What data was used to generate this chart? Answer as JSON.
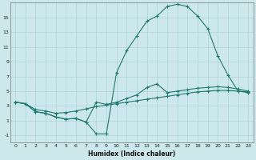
{
  "xlabel": "Humidex (Indice chaleur)",
  "bg_color": "#cce8ec",
  "line_color": "#1f7a6e",
  "grid_color": "#aad4d8",
  "xlim": [
    -0.5,
    23.5
  ],
  "ylim": [
    -2,
    17
  ],
  "xticks": [
    0,
    1,
    2,
    3,
    4,
    5,
    6,
    7,
    8,
    9,
    10,
    11,
    12,
    13,
    14,
    15,
    16,
    17,
    18,
    19,
    20,
    21,
    22,
    23
  ],
  "yticks": [
    -1,
    1,
    3,
    5,
    7,
    9,
    11,
    13,
    15
  ],
  "line1_x": [
    0,
    1,
    2,
    3,
    4,
    5,
    6,
    7,
    8,
    9,
    10,
    11,
    12,
    13,
    14,
    15,
    16,
    17,
    18,
    19,
    20,
    21,
    22,
    23
  ],
  "line1_y": [
    3.5,
    3.3,
    2.5,
    2.3,
    2.0,
    2.1,
    2.3,
    2.6,
    2.9,
    3.1,
    3.3,
    3.5,
    3.7,
    3.9,
    4.1,
    4.3,
    4.5,
    4.7,
    4.9,
    5.0,
    5.1,
    5.1,
    5.0,
    4.9
  ],
  "line2_x": [
    0,
    1,
    2,
    3,
    4,
    5,
    6,
    7,
    8,
    9,
    10,
    11,
    12,
    13,
    14,
    15,
    16,
    17,
    18,
    19,
    20,
    21,
    22,
    23
  ],
  "line2_y": [
    3.5,
    3.3,
    2.2,
    2.0,
    1.5,
    1.2,
    1.3,
    0.8,
    3.5,
    3.2,
    3.5,
    4.0,
    4.5,
    5.5,
    6.0,
    4.8,
    5.0,
    5.2,
    5.4,
    5.5,
    5.6,
    5.5,
    5.3,
    5.0
  ],
  "line3_x": [
    0,
    1,
    2,
    3,
    4,
    5,
    6,
    7,
    8,
    9,
    10,
    11,
    12,
    13,
    14,
    15,
    16,
    17,
    18,
    19,
    20,
    21,
    22,
    23
  ],
  "line3_y": [
    3.5,
    3.3,
    2.2,
    2.0,
    1.5,
    1.2,
    1.3,
    0.8,
    -0.8,
    -0.8,
    7.5,
    10.5,
    12.5,
    14.5,
    15.2,
    16.5,
    16.8,
    16.5,
    15.2,
    13.5,
    9.8,
    7.2,
    5.0,
    4.8
  ]
}
